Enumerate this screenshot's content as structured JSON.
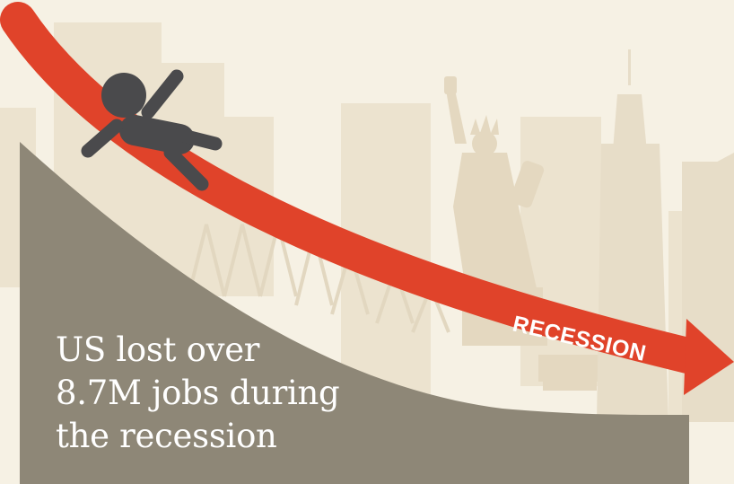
{
  "infographic": {
    "headline_lines": [
      "US lost over",
      "8.7M jobs during",
      "the recession"
    ],
    "arrow_label": "RECESSION"
  },
  "colors": {
    "background": "#f6f1e4",
    "skyline": "#ece3cf",
    "skyline_dark": "#e4d8c0",
    "hill": "#8e8777",
    "arrow": "#e0432a",
    "figure": "#4a4a4c",
    "text": "#ffffff"
  },
  "icons": {
    "figure": "falling-person-icon",
    "landmark": "statue-of-liberty-icon"
  }
}
